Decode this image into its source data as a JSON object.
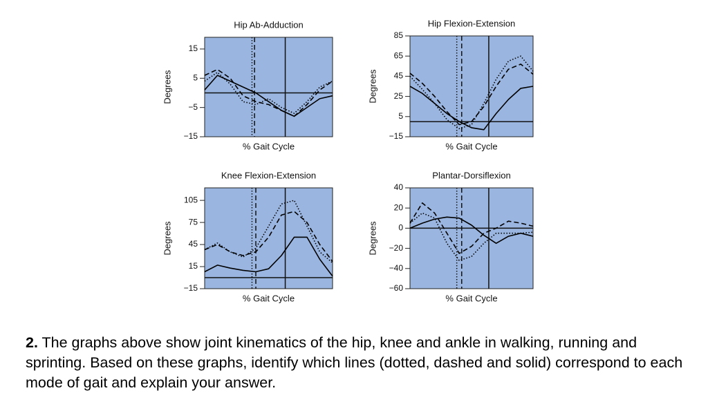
{
  "chart_data": [
    {
      "type": "line",
      "title": "Hip Ab-Adduction",
      "xlabel": "% Gait Cycle",
      "ylabel": "Degrees",
      "xlim": [
        0,
        100
      ],
      "ylim": [
        -15,
        19
      ],
      "yticks": [
        {
          "value": -15,
          "label": "−15"
        },
        {
          "value": -5,
          "label": "−5"
        },
        5,
        15
      ],
      "background": "#99b5e0",
      "hline": 0,
      "vlines": [
        {
          "x": 37,
          "dash": "dotted"
        },
        {
          "x": 39,
          "dash": "dashed"
        },
        {
          "x": 63,
          "dash": "solid"
        }
      ],
      "x": [
        0,
        10,
        20,
        30,
        40,
        50,
        60,
        70,
        80,
        90,
        100
      ],
      "series": [
        {
          "color": "#000000",
          "dash": "solid",
          "values": [
            1,
            6,
            4,
            2,
            0,
            -3,
            -6,
            -8,
            -5,
            -2,
            -1
          ]
        },
        {
          "color": "#000000",
          "dash": "dashed",
          "values": [
            6,
            8,
            5,
            -1,
            -3,
            -4,
            -6,
            -8,
            -4,
            1,
            4
          ]
        },
        {
          "color": "#000000",
          "dash": "dotted",
          "values": [
            4,
            7,
            3,
            -3,
            -4,
            -2,
            -5,
            -7,
            -3,
            2,
            4
          ]
        }
      ]
    },
    {
      "type": "line",
      "title": "Hip Flexion-Extension",
      "xlabel": "% Gait Cycle",
      "ylabel": "Degrees",
      "xlim": [
        0,
        100
      ],
      "ylim": [
        -15,
        85
      ],
      "yticks": [
        {
          "value": -15,
          "label": "−15"
        },
        5,
        25,
        45,
        65,
        85
      ],
      "background": "#99b5e0",
      "hline": 0,
      "vlines": [
        {
          "x": 38,
          "dash": "dotted"
        },
        {
          "x": 42,
          "dash": "dashed"
        },
        {
          "x": 64,
          "dash": "solid"
        }
      ],
      "x": [
        0,
        10,
        20,
        30,
        40,
        50,
        60,
        70,
        80,
        90,
        100
      ],
      "series": [
        {
          "color": "#000000",
          "dash": "solid",
          "values": [
            35,
            28,
            18,
            8,
            0,
            -6,
            -8,
            8,
            22,
            33,
            35
          ]
        },
        {
          "color": "#000000",
          "dash": "dashed",
          "values": [
            48,
            38,
            25,
            10,
            -3,
            0,
            15,
            35,
            52,
            57,
            47
          ]
        },
        {
          "color": "#000000",
          "dash": "dotted",
          "values": [
            45,
            32,
            18,
            2,
            -7,
            -3,
            18,
            42,
            60,
            65,
            50
          ]
        }
      ]
    },
    {
      "type": "line",
      "title": "Knee Flexion-Extension",
      "xlabel": "% Gait Cycle",
      "ylabel": "Degrees",
      "xlim": [
        0,
        100
      ],
      "ylim": [
        -15,
        122
      ],
      "yticks": [
        {
          "value": -15,
          "label": "−15"
        },
        15,
        45,
        75,
        105
      ],
      "background": "#99b5e0",
      "hline": 0,
      "vlines": [
        {
          "x": 37,
          "dash": "dotted"
        },
        {
          "x": 40,
          "dash": "dashed"
        },
        {
          "x": 63,
          "dash": "solid"
        }
      ],
      "x": [
        0,
        10,
        20,
        30,
        40,
        50,
        60,
        70,
        80,
        90,
        100
      ],
      "series": [
        {
          "color": "#000000",
          "dash": "solid",
          "values": [
            8,
            17,
            13,
            10,
            8,
            12,
            30,
            55,
            55,
            25,
            2
          ]
        },
        {
          "color": "#000000",
          "dash": "dashed",
          "values": [
            38,
            45,
            35,
            30,
            35,
            55,
            85,
            90,
            75,
            45,
            22
          ]
        },
        {
          "color": "#000000",
          "dash": "dotted",
          "values": [
            38,
            47,
            35,
            28,
            40,
            70,
            100,
            105,
            70,
            35,
            20
          ]
        }
      ]
    },
    {
      "type": "line",
      "title": "Plantar-Dorsiflexion",
      "xlabel": "% Gait Cycle",
      "ylabel": "Degrees",
      "xlim": [
        0,
        100
      ],
      "ylim": [
        -60,
        40
      ],
      "yticks": [
        {
          "value": -60,
          "label": "−60"
        },
        {
          "value": -40,
          "label": "−40"
        },
        {
          "value": -20,
          "label": "−20"
        },
        0,
        20,
        40
      ],
      "background": "#99b5e0",
      "hline": 0,
      "vlines": [
        {
          "x": 38,
          "dash": "dotted"
        },
        {
          "x": 42,
          "dash": "dashed"
        },
        {
          "x": 64,
          "dash": "solid"
        }
      ],
      "x": [
        0,
        10,
        20,
        30,
        40,
        50,
        60,
        70,
        80,
        90,
        100
      ],
      "series": [
        {
          "color": "#000000",
          "dash": "solid",
          "values": [
            0,
            5,
            9,
            11,
            10,
            3,
            -7,
            -15,
            -8,
            -5,
            -8
          ]
        },
        {
          "color": "#000000",
          "dash": "dashed",
          "values": [
            5,
            25,
            15,
            -5,
            -25,
            -18,
            -5,
            0,
            7,
            5,
            2
          ]
        },
        {
          "color": "#000000",
          "dash": "dotted",
          "values": [
            5,
            15,
            10,
            -15,
            -32,
            -28,
            -15,
            -5,
            -5,
            -5,
            -4
          ]
        }
      ]
    }
  ],
  "question": {
    "number": "2.",
    "text": "The graphs above show joint kinematics of the hip, knee and ankle in walking, running and sprinting. Based on these graphs, identify which lines (dotted, dashed and solid) correspond to each mode of gait and explain your answer."
  }
}
